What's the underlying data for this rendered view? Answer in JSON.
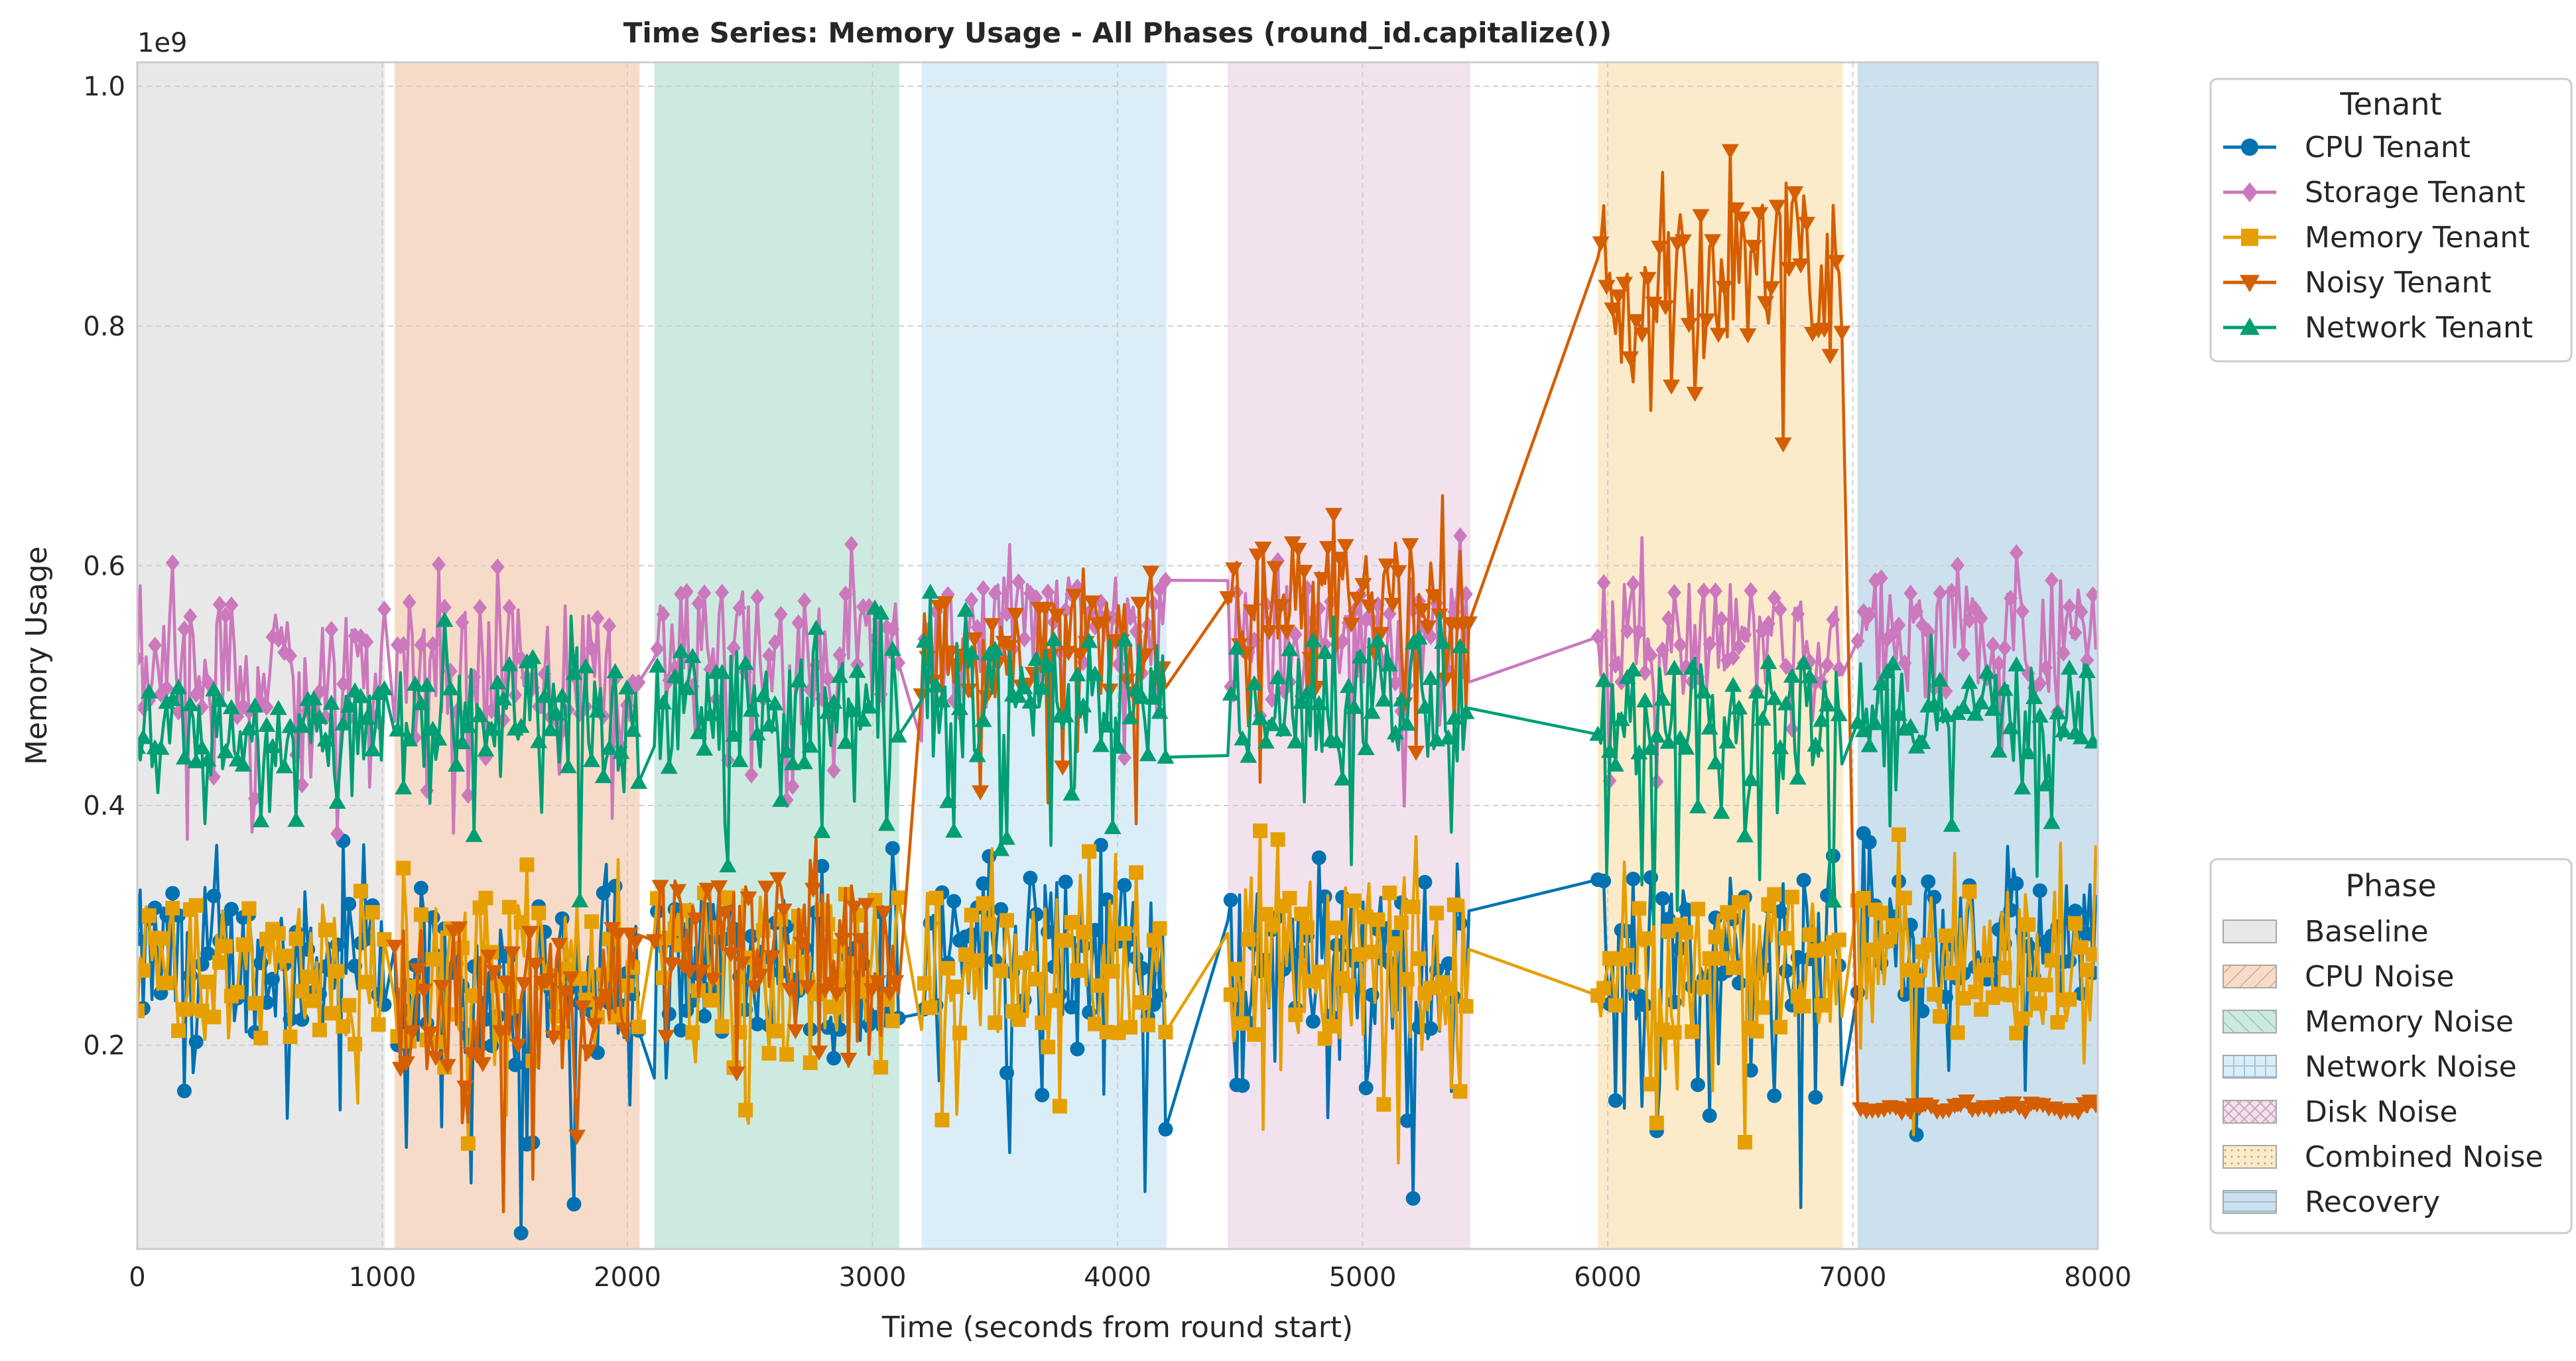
{
  "chart_data": {
    "type": "line",
    "title": "Time Series: Memory Usage - All Phases (round_id.capitalize())",
    "xlabel": "Time (seconds from round start)",
    "ylabel": "Memory Usage",
    "y_offset_label": "1e9",
    "xlim": [
      0,
      8000
    ],
    "ylim": [
      0.03,
      1.02
    ],
    "x_ticks": [
      0,
      1000,
      2000,
      3000,
      4000,
      5000,
      6000,
      7000,
      8000
    ],
    "y_ticks": [
      0.2,
      0.4,
      0.6,
      0.8,
      1.0
    ],
    "x_tick_labels": [
      "0",
      "1000",
      "2000",
      "3000",
      "4000",
      "5000",
      "6000",
      "7000",
      "8000"
    ],
    "y_tick_labels": [
      "0.2",
      "0.4",
      "0.6",
      "0.8",
      "1.0"
    ],
    "grid": true,
    "phase_legend": {
      "title": "Phase",
      "placement": "lower-right outside",
      "items": [
        {
          "label": "Baseline",
          "start": 0,
          "end": 1010,
          "color": "#e8e8e8"
        },
        {
          "label": "CPU Noise",
          "start": 1050,
          "end": 2050,
          "color": "#f6dcc8"
        },
        {
          "label": "Memory Noise",
          "start": 2110,
          "end": 3110,
          "color": "#cdeae0"
        },
        {
          "label": "Network Noise",
          "start": 3200,
          "end": 4200,
          "color": "#dbeef7"
        },
        {
          "label": "Disk Noise",
          "start": 4450,
          "end": 5440,
          "color": "#f2e2ee"
        },
        {
          "label": "Combined Noise",
          "start": 5960,
          "end": 6960,
          "color": "#fbebcb"
        },
        {
          "label": "Recovery",
          "start": 7020,
          "end": 8000,
          "color": "#cce1ed"
        }
      ]
    },
    "tenant_legend": {
      "title": "Tenant",
      "placement": "upper-right outside"
    },
    "series": [
      {
        "name": "CPU Tenant",
        "color": "#0072b2",
        "marker": "circle",
        "segments": [
          {
            "start": 0,
            "end": 1010,
            "base": 0.27,
            "spread": 0.06,
            "tail": 0.13
          },
          {
            "start": 1050,
            "end": 2050,
            "base": 0.25,
            "spread": 0.06,
            "tail": 0.15
          },
          {
            "start": 2110,
            "end": 3110,
            "base": 0.27,
            "spread": 0.06,
            "tail": 0.15
          },
          {
            "start": 3200,
            "end": 4200,
            "base": 0.28,
            "spread": 0.06,
            "tail": 0.16
          },
          {
            "start": 4450,
            "end": 5440,
            "base": 0.27,
            "spread": 0.06,
            "tail": 0.15
          },
          {
            "start": 5960,
            "end": 6960,
            "base": 0.28,
            "spread": 0.06,
            "tail": 0.16
          },
          {
            "start": 7020,
            "end": 8000,
            "base": 0.29,
            "spread": 0.05,
            "tail": 0.15
          }
        ]
      },
      {
        "name": "Storage Tenant",
        "color": "#cc78bc",
        "marker": "diamond",
        "segments": [
          {
            "start": 0,
            "end": 1010,
            "base": 0.52,
            "spread": 0.05,
            "tail": 0.1
          },
          {
            "start": 1050,
            "end": 2050,
            "base": 0.52,
            "spread": 0.05,
            "tail": 0.1
          },
          {
            "start": 2110,
            "end": 3110,
            "base": 0.53,
            "spread": 0.05,
            "tail": 0.1
          },
          {
            "start": 3200,
            "end": 4200,
            "base": 0.55,
            "spread": 0.04,
            "tail": 0.1
          },
          {
            "start": 4450,
            "end": 5440,
            "base": 0.54,
            "spread": 0.05,
            "tail": 0.1
          },
          {
            "start": 5960,
            "end": 6960,
            "base": 0.54,
            "spread": 0.05,
            "tail": 0.12
          },
          {
            "start": 7020,
            "end": 8000,
            "base": 0.54,
            "spread": 0.05,
            "tail": 0.1
          }
        ]
      },
      {
        "name": "Memory Tenant",
        "color": "#e69f00",
        "marker": "square",
        "segments": [
          {
            "start": 0,
            "end": 1010,
            "base": 0.26,
            "spread": 0.06,
            "tail": 0.1
          },
          {
            "start": 1050,
            "end": 2050,
            "base": 0.26,
            "spread": 0.06,
            "tail": 0.1
          },
          {
            "start": 2110,
            "end": 3110,
            "base": 0.27,
            "spread": 0.06,
            "tail": 0.1
          },
          {
            "start": 3200,
            "end": 4200,
            "base": 0.27,
            "spread": 0.06,
            "tail": 0.1
          },
          {
            "start": 4450,
            "end": 5440,
            "base": 0.27,
            "spread": 0.07,
            "tail": 0.1
          },
          {
            "start": 5960,
            "end": 6960,
            "base": 0.27,
            "spread": 0.06,
            "tail": 0.1
          },
          {
            "start": 7020,
            "end": 8000,
            "base": 0.27,
            "spread": 0.06,
            "tail": 0.1
          }
        ]
      },
      {
        "name": "Noisy Tenant",
        "color": "#d55e00",
        "marker": "triangle-down",
        "segments": [
          {
            "start": 1050,
            "end": 2050,
            "base": 0.24,
            "spread": 0.06,
            "tail": 0.13
          },
          {
            "start": 2110,
            "end": 3110,
            "base": 0.29,
            "spread": 0.05,
            "tail": 0.1
          },
          {
            "start": 3200,
            "end": 4200,
            "base": 0.53,
            "spread": 0.04,
            "tail": 0.12
          },
          {
            "start": 4450,
            "end": 5440,
            "base": 0.57,
            "spread": 0.05,
            "tail": 0.12
          },
          {
            "start": 5960,
            "end": 6960,
            "base": 0.85,
            "spread": 0.06,
            "tail": 0.12
          },
          {
            "start": 7020,
            "end": 8000,
            "base": 0.148,
            "spread": 0.004,
            "tail": 0.005
          }
        ]
      },
      {
        "name": "Network Tenant",
        "color": "#009e73",
        "marker": "triangle-up",
        "segments": [
          {
            "start": 0,
            "end": 1010,
            "base": 0.46,
            "spread": 0.04,
            "tail": 0.08
          },
          {
            "start": 1050,
            "end": 2050,
            "base": 0.47,
            "spread": 0.05,
            "tail": 0.1
          },
          {
            "start": 2110,
            "end": 3110,
            "base": 0.48,
            "spread": 0.05,
            "tail": 0.1
          },
          {
            "start": 3200,
            "end": 4200,
            "base": 0.49,
            "spread": 0.05,
            "tail": 0.1
          },
          {
            "start": 4450,
            "end": 5440,
            "base": 0.49,
            "spread": 0.05,
            "tail": 0.1
          },
          {
            "start": 5960,
            "end": 6960,
            "base": 0.47,
            "spread": 0.05,
            "tail": 0.12
          },
          {
            "start": 7020,
            "end": 8000,
            "base": 0.48,
            "spread": 0.04,
            "tail": 0.1
          }
        ]
      }
    ]
  }
}
